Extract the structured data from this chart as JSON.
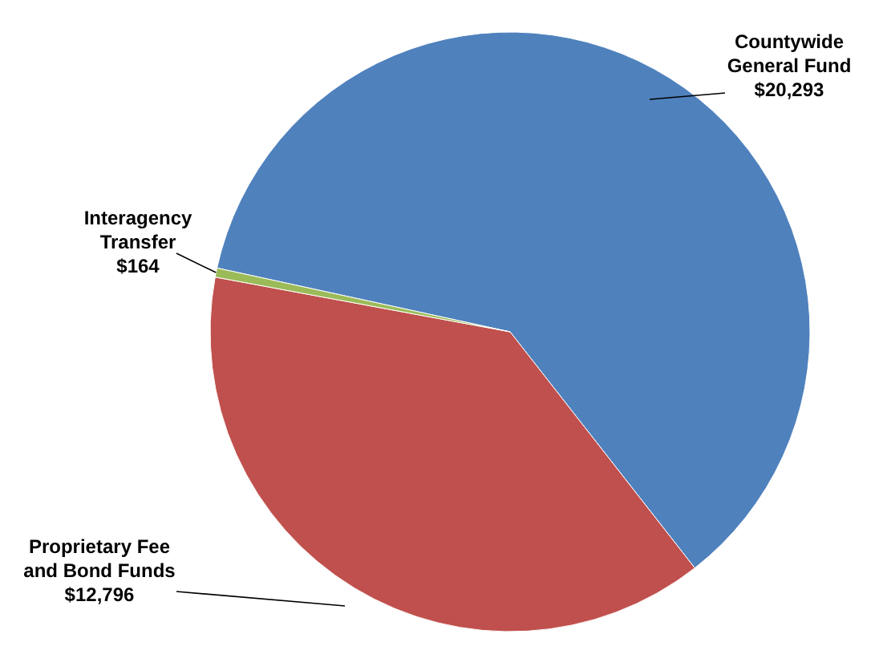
{
  "chart_data": {
    "type": "pie",
    "categories": [
      "Countywide General Fund",
      "Proprietary Fee and Bond Funds",
      "Interagency Transfer"
    ],
    "values": [
      20293,
      12796,
      164
    ],
    "value_labels": [
      "$20,293",
      "$12,796",
      "$164"
    ],
    "colors": [
      "#4f81bd",
      "#c0504d",
      "#9bbb59"
    ]
  }
}
